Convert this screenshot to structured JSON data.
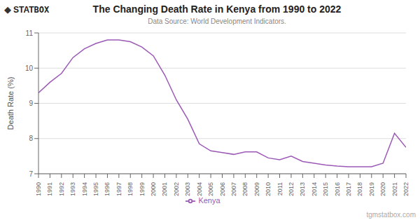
{
  "chart_data": {
    "type": "line",
    "title": "The Changing Death Rate in Kenya from 1990 to 2022",
    "subtitle": "Data Source: World Development Indicators.",
    "ylabel": "Death Rate (%)",
    "annotations": [
      "◆",
      "STAT",
      "BOX",
      "tgmstatbox.com"
    ],
    "x": [
      1990,
      1991,
      1992,
      1993,
      1994,
      1995,
      1996,
      1997,
      1998,
      1999,
      2000,
      2001,
      2002,
      2003,
      2004,
      2005,
      2006,
      2007,
      2008,
      2009,
      2010,
      2011,
      2012,
      2013,
      2014,
      2015,
      2016,
      2017,
      2018,
      2019,
      2020,
      2021,
      2022
    ],
    "series": [
      {
        "name": "Kenya",
        "color": "#9b59b6",
        "values": [
          9.3,
          9.6,
          9.85,
          10.3,
          10.55,
          10.7,
          10.8,
          10.8,
          10.75,
          10.6,
          10.35,
          9.8,
          9.1,
          8.55,
          7.85,
          7.65,
          7.6,
          7.55,
          7.62,
          7.62,
          7.45,
          7.4,
          7.5,
          7.35,
          7.3,
          7.25,
          7.22,
          7.2,
          7.2,
          7.2,
          7.3,
          8.15,
          7.75
        ]
      }
    ],
    "xlim": [
      1990,
      2022
    ],
    "xticks": [
      1990,
      1991,
      1992,
      1993,
      1994,
      1995,
      1996,
      1997,
      1998,
      1999,
      2000,
      2001,
      2002,
      2003,
      2004,
      2005,
      2006,
      2007,
      2008,
      2009,
      2010,
      2011,
      2012,
      2013,
      2014,
      2015,
      2016,
      2017,
      2018,
      2019,
      2020,
      2021,
      2022
    ],
    "ylim": [
      7,
      11
    ],
    "yticks": [
      7,
      8,
      9,
      10,
      11
    ],
    "grid": true,
    "legend": "bottom"
  }
}
